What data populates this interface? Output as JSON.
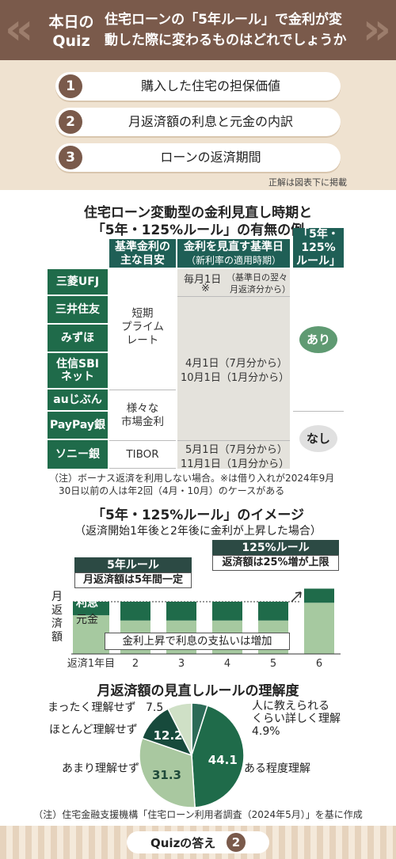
{
  "quiz": {
    "label_line1": "本日の",
    "label_line2": "Quiz",
    "question_line1": "住宅ローンの「5年ルール」で金利が変",
    "question_line2": "動した際に変わるものはどれでしょうか",
    "choices": [
      {
        "num": "1",
        "text": "購入した住宅の担保価値"
      },
      {
        "num": "2",
        "text": "月返済額の利息と元金の内訳"
      },
      {
        "num": "3",
        "text": "ローンの返済期間"
      }
    ],
    "answer_note": "正解は図表下に掲載"
  },
  "table": {
    "title_line1": "住宅ローン変動型の金利見直し時期と",
    "title_line2": "「5年・125%ルール」の有無の例",
    "headers": {
      "base_rate_line1": "基準金利の",
      "base_rate_line2": "主な目安",
      "review_line1": "金利を見直す基準日",
      "review_line2": "（新利率の適用時期）",
      "rule_line1": "「5年・",
      "rule_line2": "125%",
      "rule_line3": "ルール」"
    },
    "banks": [
      "三菱UFJ",
      "三井住友",
      "みずほ",
      "住信SBI\nネット",
      "auじぶん",
      "PayPay銀",
      "ソニー銀"
    ],
    "base_rates": {
      "short_prime_line1": "短期",
      "short_prime_line2": "プライム",
      "short_prime_line3": "レート",
      "market_line1": "様々な",
      "market_line2": "市場金利",
      "tibor": "TIBOR"
    },
    "review_dates": {
      "monthly": "毎月1日",
      "monthly_mark": "※",
      "monthly_note_line1": "（基準日の翌々",
      "monthly_note_line2": "月返済分から）",
      "apr": "4月1日（7月分から）",
      "oct": "10月1日（1月分から）",
      "may": "5月1日（7月分から）",
      "nov": "11月1日（1月分から）"
    },
    "rule_yes": "あり",
    "rule_no": "なし",
    "note_line1": "（注）ボーナス返済を利用しない場合。※は借り入れが2024年9月",
    "note_line2": "30日以前の人は年2回（4月・10月）のケースがある"
  },
  "bar_image": {
    "title": "「5年・125%ルール」のイメージ",
    "subtitle": "（返済開始1年後と2年後に金利が上昇した場合）",
    "five_year_rule": "5年ルール",
    "five_year_note": "月返済額は5年間一定",
    "rule_125": "125%ルール",
    "rule_125_note": "返済額は25%増が上限",
    "ylabel": "月返済額",
    "interest_label": "利息",
    "principal_label": "元金",
    "annotation": "金利上昇で利息の支払いは増加",
    "colors": {
      "interest": "#1f6b4a",
      "principal": "#a6c9a0"
    }
  },
  "pie": {
    "title": "月返済額の見直しルールの理解度",
    "note": "（注）住宅金融支援機構「住宅ローン利用者調査（2024年5月）」を基に作成",
    "labels": {
      "teach_line1": "人に教えられる",
      "teach_line2": "くらい詳しく理解",
      "teach_value": "4.9%"
    }
  },
  "chart_data": [
    {
      "type": "bar",
      "title": "「5年・125%ルール」のイメージ",
      "xlabel": "",
      "ylabel": "月返済額",
      "categories": [
        "返済1年目",
        "2",
        "3",
        "4",
        "5",
        "6"
      ],
      "series": [
        {
          "name": "元金",
          "values": [
            3.7,
            3.2,
            3.2,
            3.2,
            3.2,
            4.9
          ]
        },
        {
          "name": "利息",
          "values": [
            1.3,
            1.8,
            1.8,
            1.8,
            1.8,
            1.35
          ]
        }
      ]
    },
    {
      "type": "pie",
      "title": "月返済額の見直しルールの理解度",
      "slices": [
        {
          "label": "人に教えられるくらい詳しく理解",
          "value": 4.9,
          "color": "#2c6b57"
        },
        {
          "label": "ある程度理解",
          "value": 44.1,
          "color": "#1f6b4a"
        },
        {
          "label": "あまり理解せず",
          "value": 31.3,
          "color": "#a9c8a0"
        },
        {
          "label": "ほとんど理解せず",
          "value": 12.2,
          "color": "#174a3c"
        },
        {
          "label": "まったく理解せず",
          "value": 7.5,
          "color": "#cfe0c6"
        }
      ]
    }
  ],
  "footer": {
    "answer_label": "Quizの答え",
    "answer_value": "2"
  }
}
